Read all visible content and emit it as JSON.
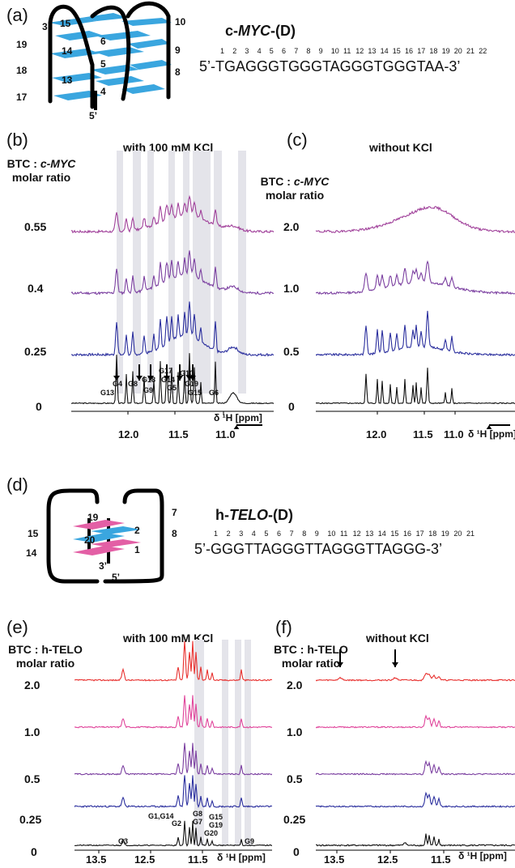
{
  "panels": {
    "a": {
      "letter": "(a)",
      "title_prefix": "c-",
      "title_italic": "MYC",
      "title_suffix": "-(D)",
      "numbering": [
        "1",
        "2",
        "3",
        "4",
        "5",
        "6",
        "7",
        "8",
        "9",
        "10",
        "11",
        "12",
        "13",
        "14",
        "15",
        "16",
        "17",
        "18",
        "19",
        "20",
        "21",
        "22"
      ],
      "sequence": "5’-TGAGGGTGGGTAGGGTGGGTAA-3’",
      "topology_labels": [
        "3’",
        "15",
        "10",
        "19",
        "6",
        "9",
        "14",
        "18",
        "5",
        "13",
        "8",
        "17",
        "4",
        "5’"
      ]
    },
    "b": {
      "letter": "(b)",
      "condition": "with 100 mM  KCl",
      "ratio_header_1a": "BTC : ",
      "ratio_header_1b": "c-MYC",
      "ratio_header_2": "molar ratio",
      "ratios": [
        "0.55",
        "0.4",
        "0.25",
        "0"
      ],
      "ticks": [
        "12.0",
        "11.5",
        "11.0"
      ],
      "axis_label": "δ ¹H [ppm]",
      "peak_labels": [
        "G4",
        "G13",
        "G8",
        "G9",
        "G18",
        "G17",
        "G14",
        "G10",
        "G5",
        "G19",
        "G15",
        "G6"
      ]
    },
    "c": {
      "letter": "(c)",
      "condition": "without  KCl",
      "ratio_header_1a": "BTC : ",
      "ratio_header_1b": "c-MYC",
      "ratio_header_2": "molar ratio",
      "ratios": [
        "2.0",
        "1.0",
        "0.5",
        "0"
      ],
      "ticks": [
        "12.0",
        "11.5",
        "11.0"
      ],
      "axis_label": "δ ¹H [ppm]"
    },
    "d": {
      "letter": "(d)",
      "title_prefix": "h-",
      "title_italic": "TELO",
      "title_suffix": "-(D)",
      "numbering": [
        "1",
        "2",
        "3",
        "4",
        "5",
        "6",
        "7",
        "8",
        "9",
        "10",
        "11",
        "12",
        "13",
        "14",
        "15",
        "16",
        "17",
        "18",
        "19",
        "20",
        "21"
      ],
      "sequence": "5’-GGGTTAGGGTTAGGGTTAGGG-3’",
      "topology_labels": [
        "19",
        "7",
        "15",
        "2",
        "8",
        "20",
        "1",
        "14",
        "3’",
        "5’"
      ]
    },
    "e": {
      "letter": "(e)",
      "condition": "with 100 mM  KCl",
      "ratio_header_1": "BTC : h-TELO",
      "ratio_header_2": "molar ratio",
      "ratios": [
        "2.0",
        "1.0",
        "0.5",
        "0.25",
        "0"
      ],
      "ticks": [
        "13.5",
        "12.5",
        "11.5"
      ],
      "axis_label": "δ ¹H [ppm]",
      "peak_labels": [
        "G1,G14",
        "G2",
        "G8",
        "G7",
        "G15",
        "G19",
        "G20",
        "G3",
        "G9"
      ]
    },
    "f": {
      "letter": "(f)",
      "condition": "without  KCl",
      "ratio_header_1": "BTC : h-TELO",
      "ratio_header_2": "molar ratio",
      "ratios": [
        "2.0",
        "1.0",
        "0.5",
        "0.25",
        "0"
      ],
      "ticks": [
        "13.5",
        "12.5",
        "11.5"
      ],
      "axis_label": "δ ¹H [ppm]"
    }
  },
  "colors": {
    "black": "#111111",
    "blue": "#2b2f9e",
    "purple": "#7b3fa0",
    "magenta": "#a0409a",
    "pink": "#e0459b",
    "red": "#e8312f",
    "shade": "#e4e4ea",
    "strand_blue": "#3aa6df",
    "strand_pink": "#e35fa5"
  }
}
